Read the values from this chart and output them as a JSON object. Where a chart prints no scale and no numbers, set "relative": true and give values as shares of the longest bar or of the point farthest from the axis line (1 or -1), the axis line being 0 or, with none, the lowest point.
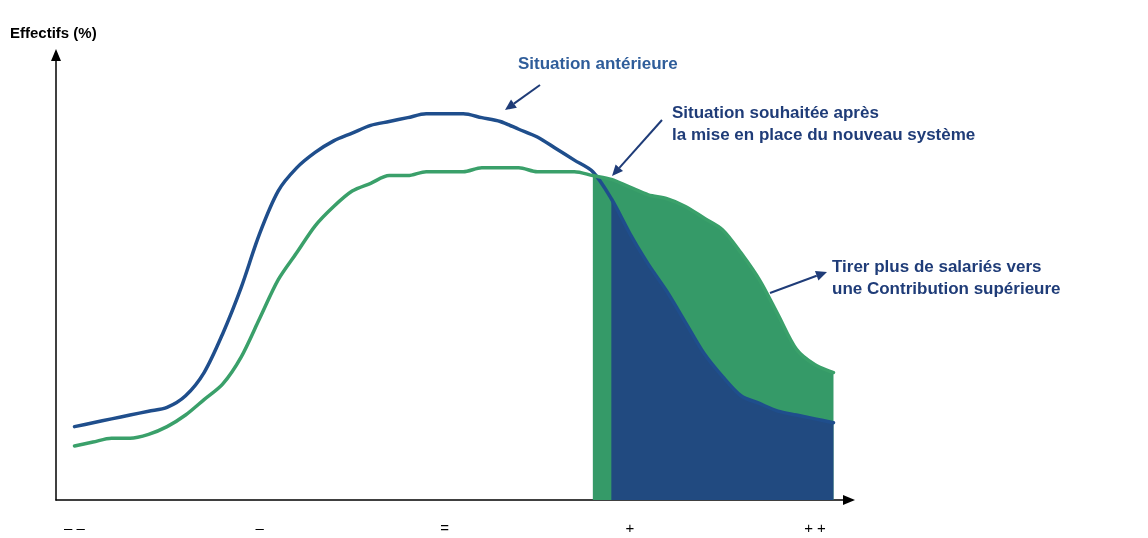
{
  "chart_data": {
    "type": "line",
    "relative": true,
    "ylabel": "Effectifs (%)",
    "categories": [
      null,
      "– –",
      null,
      null,
      null,
      null,
      null,
      null,
      null,
      null,
      null,
      "–",
      null,
      null,
      null,
      null,
      null,
      null,
      null,
      null,
      null,
      "=",
      null,
      null,
      null,
      null,
      null,
      null,
      null,
      null,
      null,
      "+",
      null,
      null,
      null,
      null,
      null,
      null,
      null,
      null,
      null,
      "+ +",
      null,
      null
    ],
    "series": [
      {
        "type": "area",
        "color": "#359a68",
        "values": [
          null,
          null,
          null,
          null,
          null,
          null,
          null,
          null,
          null,
          null,
          null,
          null,
          null,
          null,
          null,
          null,
          null,
          null,
          null,
          null,
          null,
          null,
          null,
          null,
          null,
          null,
          null,
          null,
          null,
          0.84,
          0.83,
          0.81,
          0.79,
          0.78,
          0.76,
          0.73,
          0.7,
          0.64,
          0.57,
          0.48,
          0.39,
          0.35,
          0.33,
          null
        ]
      },
      {
        "type": "area",
        "color": "#214a80",
        "values": [
          null,
          null,
          null,
          null,
          null,
          null,
          null,
          null,
          null,
          null,
          null,
          null,
          null,
          null,
          null,
          null,
          null,
          null,
          null,
          null,
          null,
          null,
          null,
          null,
          null,
          null,
          null,
          null,
          null,
          null,
          0.78,
          0.69,
          0.61,
          0.54,
          0.46,
          0.38,
          0.32,
          0.27,
          0.25,
          0.23,
          0.22,
          0.21,
          0.2,
          null
        ]
      },
      {
        "color": "#1f4e8c",
        "values": [
          null,
          0.19,
          0.2,
          0.21,
          0.22,
          0.23,
          0.24,
          0.27,
          0.33,
          0.43,
          0.55,
          0.69,
          0.8,
          0.86,
          0.9,
          0.93,
          0.95,
          0.97,
          0.98,
          0.99,
          1.0,
          1.0,
          1.0,
          0.99,
          0.98,
          0.96,
          0.94,
          0.91,
          0.88,
          0.85,
          0.78,
          0.69,
          0.61,
          0.54,
          0.46,
          0.38,
          0.32,
          0.27,
          0.25,
          0.23,
          0.22,
          0.21,
          0.2,
          null
        ]
      },
      {
        "color": "#3aa06a",
        "values": [
          null,
          0.14,
          0.15,
          0.16,
          0.16,
          0.17,
          0.19,
          0.22,
          0.26,
          0.3,
          0.37,
          0.47,
          0.57,
          0.64,
          0.71,
          0.76,
          0.8,
          0.82,
          0.84,
          0.84,
          0.85,
          0.85,
          0.85,
          0.86,
          0.86,
          0.86,
          0.85,
          0.85,
          0.85,
          0.84,
          0.83,
          0.81,
          0.79,
          0.78,
          0.76,
          0.73,
          0.7,
          0.64,
          0.57,
          0.48,
          0.39,
          0.35,
          0.33,
          null
        ]
      }
    ],
    "annotations": [
      "Situation antérieure",
      "Situation souhaitée après\nla mise en place du nouveau système",
      "Tirer plus de salariés vers\nune Contribution supérieure"
    ],
    "grid": false,
    "marker": "none",
    "line_style": "solid"
  }
}
